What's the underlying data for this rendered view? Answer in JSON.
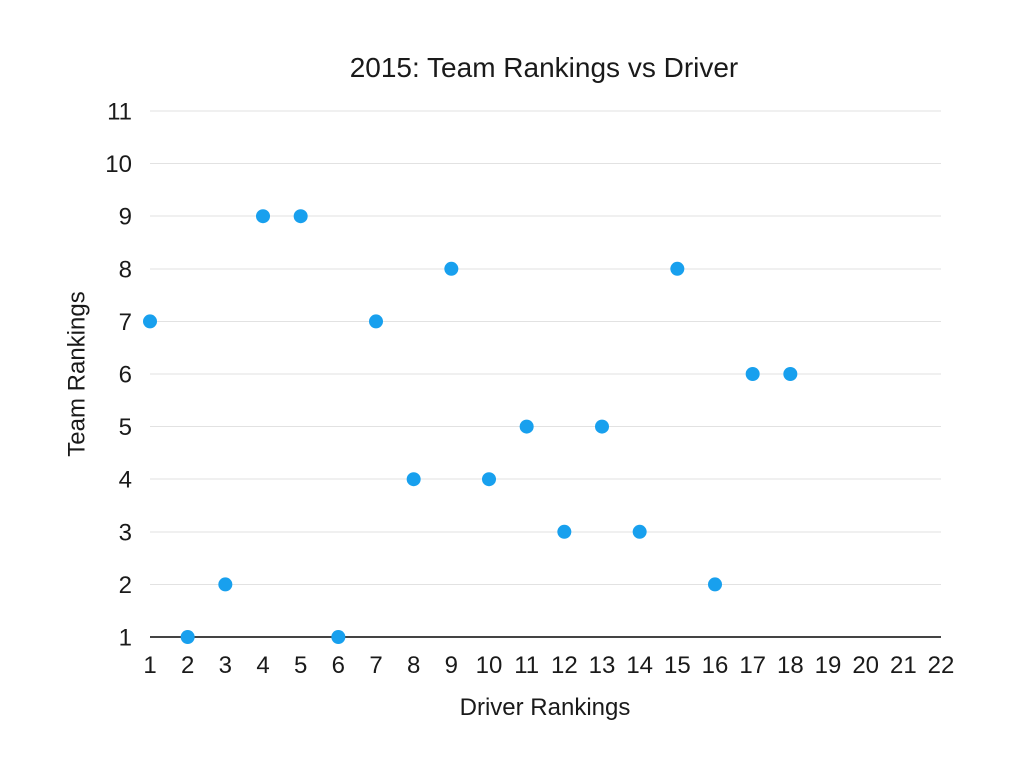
{
  "chart_data": {
    "type": "scatter",
    "title": "2015: Team Rankings vs Driver",
    "xlabel": "Driver Rankings",
    "ylabel": "Team Rankings",
    "xlim": [
      1,
      22
    ],
    "ylim": [
      1,
      11
    ],
    "x_ticks": [
      1,
      2,
      3,
      4,
      5,
      6,
      7,
      8,
      9,
      10,
      11,
      12,
      13,
      14,
      15,
      16,
      17,
      18,
      19,
      20,
      21,
      22
    ],
    "y_ticks": [
      1,
      2,
      3,
      4,
      5,
      6,
      7,
      8,
      9,
      10,
      11
    ],
    "grid": "horizontal-only",
    "legend_position": "none",
    "points": [
      [
        1,
        7
      ],
      [
        2,
        1
      ],
      [
        3,
        2
      ],
      [
        4,
        9
      ],
      [
        5,
        9
      ],
      [
        6,
        1
      ],
      [
        7,
        7
      ],
      [
        8,
        4
      ],
      [
        9,
        8
      ],
      [
        10,
        4
      ],
      [
        11,
        5
      ],
      [
        12,
        3
      ],
      [
        13,
        5
      ],
      [
        14,
        3
      ],
      [
        15,
        8
      ],
      [
        16,
        2
      ],
      [
        17,
        6
      ],
      [
        18,
        6
      ]
    ]
  },
  "colors": {
    "marker": "#18a0ee",
    "gridline": "#e2e2e2",
    "axis_line": "#444444",
    "text": "#1a1a1a",
    "background": "#ffffff"
  }
}
